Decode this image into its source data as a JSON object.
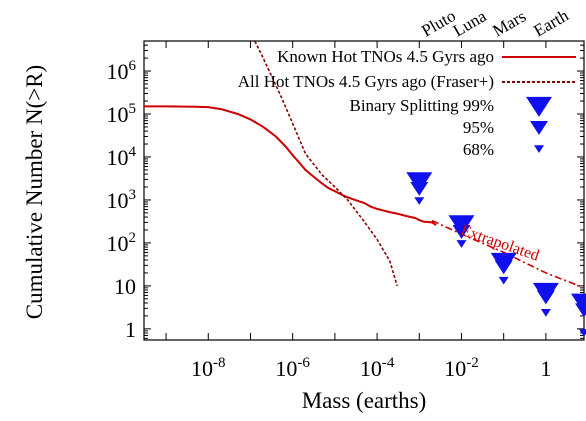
{
  "chart_data": {
    "type": "line",
    "xlabel": "Mass (earths)",
    "ylabel": "Cumulative Number N(>R)",
    "xscale": "log",
    "yscale": "log",
    "xlim": [
      3e-10,
      8
    ],
    "ylim": [
      0.55,
      5000000
    ],
    "grid": false,
    "legend_position": "top-right",
    "x_tick_labels": [
      {
        "value": 1e-08,
        "base": "10",
        "exp": "-8"
      },
      {
        "value": 1e-06,
        "base": "10",
        "exp": "-6"
      },
      {
        "value": 0.0001,
        "base": "10",
        "exp": "-4"
      },
      {
        "value": 0.01,
        "base": "10",
        "exp": "-2"
      },
      {
        "value": 1,
        "base": "1",
        "exp": ""
      }
    ],
    "y_tick_labels": [
      {
        "value": 1,
        "base": "1",
        "exp": ""
      },
      {
        "value": 10,
        "base": "10",
        "exp": ""
      },
      {
        "value": 100,
        "base": "10",
        "exp": "2"
      },
      {
        "value": 1000,
        "base": "10",
        "exp": "3"
      },
      {
        "value": 10000,
        "base": "10",
        "exp": "4"
      },
      {
        "value": 100000,
        "base": "10",
        "exp": "5"
      },
      {
        "value": 1000000,
        "base": "10",
        "exp": "6"
      }
    ],
    "top_labels": [
      {
        "label": "Pluto",
        "x": 0.0022
      },
      {
        "label": "Luna",
        "x": 0.0123
      },
      {
        "label": "Mars",
        "x": 0.107
      },
      {
        "label": "Earth",
        "x": 1
      }
    ],
    "annotations": [
      {
        "text": "Extrapolated",
        "x": 0.012,
        "y": 220
      }
    ],
    "series": [
      {
        "name": "Known Hot TNOs 4.5 Gyrs ago",
        "style": "solid",
        "color": "#cc0000",
        "x": [
          3e-10,
          1e-09,
          5e-09,
          1e-08,
          2e-08,
          5e-08,
          1e-07,
          2e-07,
          4e-07,
          7e-07,
          1e-06,
          1.5e-06,
          2e-06,
          3e-06,
          5e-06,
          7e-06,
          1e-05,
          1.5e-05,
          2e-05,
          3e-05,
          5e-05,
          7e-05,
          0.0001,
          0.00015,
          0.0002,
          0.0003,
          0.0005,
          0.0008,
          0.001,
          0.0013,
          0.002,
          0.0025
        ],
        "y": [
          150000,
          150000,
          148000,
          145000,
          130000,
          100000,
          75000,
          50000,
          30000,
          17000,
          11000,
          7000,
          5000,
          3600,
          2400,
          1900,
          1600,
          1300,
          1150,
          1000,
          850,
          700,
          620,
          560,
          520,
          480,
          420,
          380,
          340,
          310,
          300,
          260
        ]
      },
      {
        "name": "All Hot TNOs 4.5 Gyrs ago (Fraser+)",
        "style": "dashed",
        "color": "#8b0000",
        "x": [
          1e-07,
          2e-07,
          5e-07,
          1e-06,
          2e-06,
          5e-06,
          1e-05,
          2e-05,
          5e-05,
          0.0001,
          0.0002,
          0.0003
        ],
        "y": [
          8000000,
          2000000,
          290000,
          60000,
          12000,
          3800,
          2000,
          1000,
          310,
          120,
          38,
          10
        ]
      },
      {
        "name": "Extrapolated",
        "style": "dash-dot",
        "color": "#cc0000",
        "x": [
          0.002,
          0.01,
          0.1,
          1,
          8
        ],
        "y": [
          330,
          160,
          60,
          20,
          9
        ]
      }
    ],
    "markers": {
      "color": "#1010ee",
      "legend": [
        {
          "label": "Binary Splitting 99%",
          "size": "large"
        },
        {
          "label": "95%",
          "size": "medium"
        },
        {
          "label": "68%",
          "size": "small"
        }
      ],
      "points": [
        {
          "x": 0.001,
          "y99": 3000,
          "y95": 2000,
          "y68": 1000
        },
        {
          "x": 0.01,
          "y99": 300,
          "y95": 200,
          "y68": 100
        },
        {
          "x": 0.1,
          "y99": 40,
          "y95": 30,
          "y68": 14
        },
        {
          "x": 1,
          "y99": 8,
          "y95": 6,
          "y68": 2.5
        },
        {
          "x": 8,
          "y99": 4.5,
          "y95": 3,
          "y68": 0.85
        }
      ]
    }
  }
}
